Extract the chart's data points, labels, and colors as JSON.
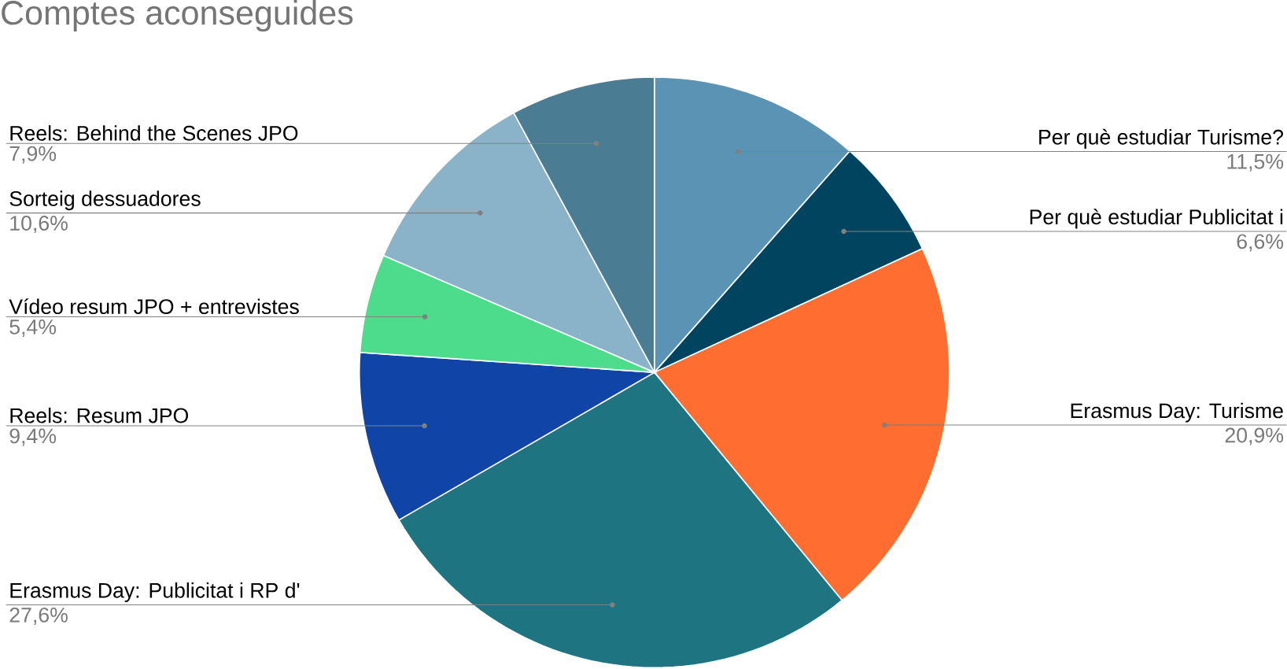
{
  "chart_data": {
    "type": "pie",
    "title": "Comptes aconseguides",
    "categories": [
      "Per què estudiar Turisme?",
      "Per què estudiar Publicitat i",
      "Erasmus Day: Turisme",
      "Erasmus Day: Publicitat i RP d'",
      "Reels: Resum JPO",
      "Vídeo resum JPO + entrevistes",
      "Sorteig dessuadores",
      "Reels: Behind the Scenes JPO"
    ],
    "values": [
      11.5,
      6.6,
      20.9,
      27.6,
      9.4,
      5.4,
      10.6,
      7.9
    ],
    "colors": [
      "#5a93b4",
      "#00445f",
      "#ff6d31",
      "#1f7482",
      "#1045a7",
      "#4cdc8b",
      "#8ab2c9",
      "#4a7d93"
    ],
    "value_labels": [
      "11,5%",
      "6,6%",
      "20,9%",
      "27,6%",
      "9,4%",
      "5,4%",
      "10,6%",
      "7,9%"
    ]
  }
}
